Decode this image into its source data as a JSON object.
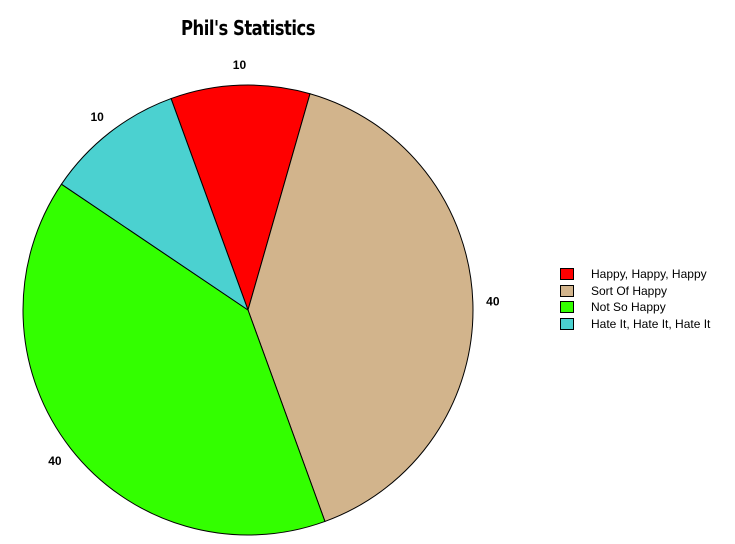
{
  "chart_data": {
    "type": "pie",
    "title": "Phil's Statistics",
    "categories": [
      "Happy, Happy, Happy",
      "Sort Of Happy",
      "Not So Happy",
      "Hate It, Hate It, Hate It"
    ],
    "values": [
      10,
      40,
      40,
      10
    ],
    "colors": [
      "#ff0000",
      "#d2b48c",
      "#33ff00",
      "#4bd1d0"
    ],
    "start_angle_deg": -20,
    "direction": "clockwise",
    "legend_position": "right",
    "data_labels": [
      "10",
      "40",
      "40",
      "10"
    ]
  }
}
